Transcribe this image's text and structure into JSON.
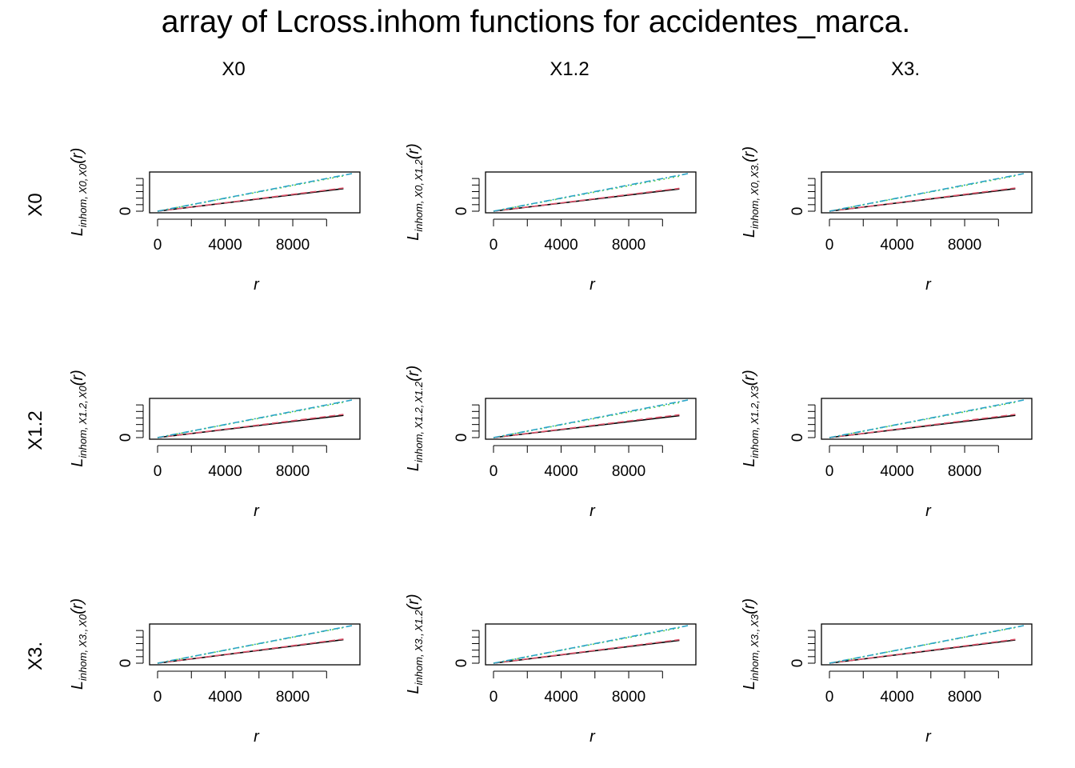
{
  "title": "array of Lcross.inhom functions for accidentes_marca.",
  "col_titles": [
    "X0",
    "X1.2",
    "X3."
  ],
  "row_titles": [
    "X0",
    "X1.2",
    "X3."
  ],
  "x_tick_labels": [
    "0",
    "4000",
    "8000"
  ],
  "y_tick_label": "0",
  "xlabel": "r",
  "ylabel_base": "L",
  "ylabel_sub_prefix": "inhom,",
  "ylabel_arg": "(r)",
  "ylabel_pair_sep": ",",
  "series_colors": {
    "iso": "#000000",
    "trans": "#df536b",
    "border": "#61d04f",
    "theo": "#28a3c6"
  },
  "chart_data": {
    "type": "line",
    "layout": "3x3 panel array",
    "xlim": [
      0,
      11500
    ],
    "ylim": [
      0,
      11500
    ],
    "x_ticks": [
      0,
      2000,
      4000,
      6000,
      8000,
      10000
    ],
    "y_ticks_unlabeled": [
      2000,
      4000,
      6000,
      8000,
      10000
    ],
    "panels": [
      {
        "row": "X0",
        "col": "X0",
        "ylabel_pair": [
          "X0",
          "X0"
        ],
        "series": [
          {
            "key": "iso",
            "x": [
              0,
              11000
            ],
            "y": [
              0,
              6900
            ]
          },
          {
            "key": "trans",
            "x": [
              0,
              11000
            ],
            "y": [
              0,
              7100
            ]
          },
          {
            "key": "border",
            "x": [
              0,
              11000
            ],
            "y": [
              0,
              10800
            ]
          },
          {
            "key": "theo",
            "x": [
              0,
              11500
            ],
            "y": [
              0,
              11500
            ]
          }
        ]
      },
      {
        "row": "X0",
        "col": "X1.2",
        "ylabel_pair": [
          "X0",
          "X1.2"
        ],
        "series": [
          {
            "key": "iso",
            "x": [
              0,
              11000
            ],
            "y": [
              0,
              6800
            ]
          },
          {
            "key": "trans",
            "x": [
              0,
              11000
            ],
            "y": [
              0,
              7000
            ]
          },
          {
            "key": "border",
            "x": [
              0,
              11000
            ],
            "y": [
              0,
              10700
            ]
          },
          {
            "key": "theo",
            "x": [
              0,
              11500
            ],
            "y": [
              0,
              11500
            ]
          }
        ]
      },
      {
        "row": "X0",
        "col": "X3.",
        "ylabel_pair": [
          "X0",
          "X3."
        ],
        "series": [
          {
            "key": "iso",
            "x": [
              0,
              11000
            ],
            "y": [
              0,
              6900
            ]
          },
          {
            "key": "trans",
            "x": [
              0,
              11000
            ],
            "y": [
              0,
              7100
            ]
          },
          {
            "key": "border",
            "x": [
              0,
              11000
            ],
            "y": [
              0,
              10800
            ]
          },
          {
            "key": "theo",
            "x": [
              0,
              11500
            ],
            "y": [
              0,
              11500
            ]
          }
        ]
      },
      {
        "row": "X1.2",
        "col": "X0",
        "ylabel_pair": [
          "X1.2",
          "X0"
        ],
        "series": [
          {
            "key": "iso",
            "x": [
              0,
              11000
            ],
            "y": [
              0,
              6800
            ]
          },
          {
            "key": "trans",
            "x": [
              0,
              11000
            ],
            "y": [
              0,
              7100
            ]
          },
          {
            "key": "border",
            "x": [
              0,
              11000
            ],
            "y": [
              0,
              10800
            ]
          },
          {
            "key": "theo",
            "x": [
              0,
              11500
            ],
            "y": [
              0,
              11500
            ]
          }
        ]
      },
      {
        "row": "X1.2",
        "col": "X1.2",
        "ylabel_pair": [
          "X1.2",
          "X1.2"
        ],
        "series": [
          {
            "key": "iso",
            "x": [
              0,
              11000
            ],
            "y": [
              0,
              6700
            ]
          },
          {
            "key": "trans",
            "x": [
              0,
              11000
            ],
            "y": [
              0,
              7000
            ]
          },
          {
            "key": "border",
            "x": [
              0,
              11000
            ],
            "y": [
              0,
              10700
            ]
          },
          {
            "key": "theo",
            "x": [
              0,
              11500
            ],
            "y": [
              0,
              11500
            ]
          }
        ]
      },
      {
        "row": "X1.2",
        "col": "X3.",
        "ylabel_pair": [
          "X1.2",
          "X3"
        ],
        "series": [
          {
            "key": "iso",
            "x": [
              0,
              11000
            ],
            "y": [
              0,
              6800
            ]
          },
          {
            "key": "trans",
            "x": [
              0,
              11000
            ],
            "y": [
              0,
              7100
            ]
          },
          {
            "key": "border",
            "x": [
              0,
              11000
            ],
            "y": [
              0,
              10800
            ]
          },
          {
            "key": "theo",
            "x": [
              0,
              11500
            ],
            "y": [
              0,
              11500
            ]
          }
        ]
      },
      {
        "row": "X3.",
        "col": "X0",
        "ylabel_pair": [
          "X3.",
          "X0"
        ],
        "series": [
          {
            "key": "iso",
            "x": [
              0,
              11000
            ],
            "y": [
              0,
              7200
            ]
          },
          {
            "key": "trans",
            "x": [
              0,
              11000
            ],
            "y": [
              0,
              7400
            ]
          },
          {
            "key": "border",
            "x": [
              0,
              11000
            ],
            "y": [
              0,
              10900
            ]
          },
          {
            "key": "theo",
            "x": [
              0,
              11500
            ],
            "y": [
              0,
              11500
            ]
          }
        ]
      },
      {
        "row": "X3.",
        "col": "X1.2",
        "ylabel_pair": [
          "X3.",
          "X1.2"
        ],
        "series": [
          {
            "key": "iso",
            "x": [
              0,
              11000
            ],
            "y": [
              0,
              7000
            ]
          },
          {
            "key": "trans",
            "x": [
              0,
              11000
            ],
            "y": [
              0,
              7200
            ]
          },
          {
            "key": "border",
            "x": [
              0,
              11000
            ],
            "y": [
              0,
              10800
            ]
          },
          {
            "key": "theo",
            "x": [
              0,
              11500
            ],
            "y": [
              0,
              11500
            ]
          }
        ]
      },
      {
        "row": "X3.",
        "col": "X3.",
        "ylabel_pair": [
          "X3.",
          "X3"
        ],
        "series": [
          {
            "key": "iso",
            "x": [
              0,
              11000
            ],
            "y": [
              0,
              7100
            ]
          },
          {
            "key": "trans",
            "x": [
              0,
              11000
            ],
            "y": [
              0,
              7300
            ]
          },
          {
            "key": "border",
            "x": [
              0,
              11000
            ],
            "y": [
              0,
              10900
            ]
          },
          {
            "key": "theo",
            "x": [
              0,
              11500
            ],
            "y": [
              0,
              11500
            ]
          }
        ]
      }
    ]
  }
}
